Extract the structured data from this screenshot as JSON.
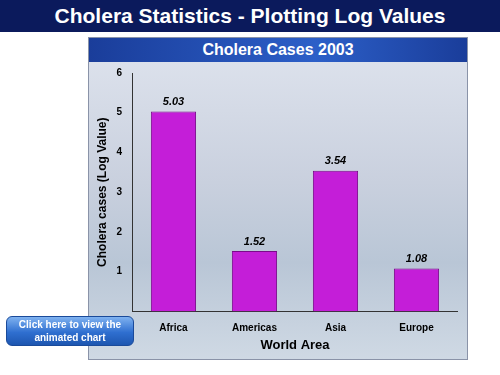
{
  "page": {
    "title": "Cholera Statistics - Plotting Log Values",
    "button": "Click here to view the animated chart"
  },
  "chart_data": {
    "type": "bar",
    "title": "Cholera Cases 2003",
    "x_label": "World Area",
    "y_label": "Cholera cases (Log Value)",
    "categories": [
      "Africa",
      "Americas",
      "Asia",
      "Europe"
    ],
    "values": [
      5.03,
      1.52,
      3.54,
      1.08
    ],
    "color": "#c41ed8",
    "ylim": [
      0,
      6
    ],
    "yticks": [
      1,
      2,
      3,
      4,
      5,
      6
    ],
    "grid": false,
    "data_labels": true
  }
}
